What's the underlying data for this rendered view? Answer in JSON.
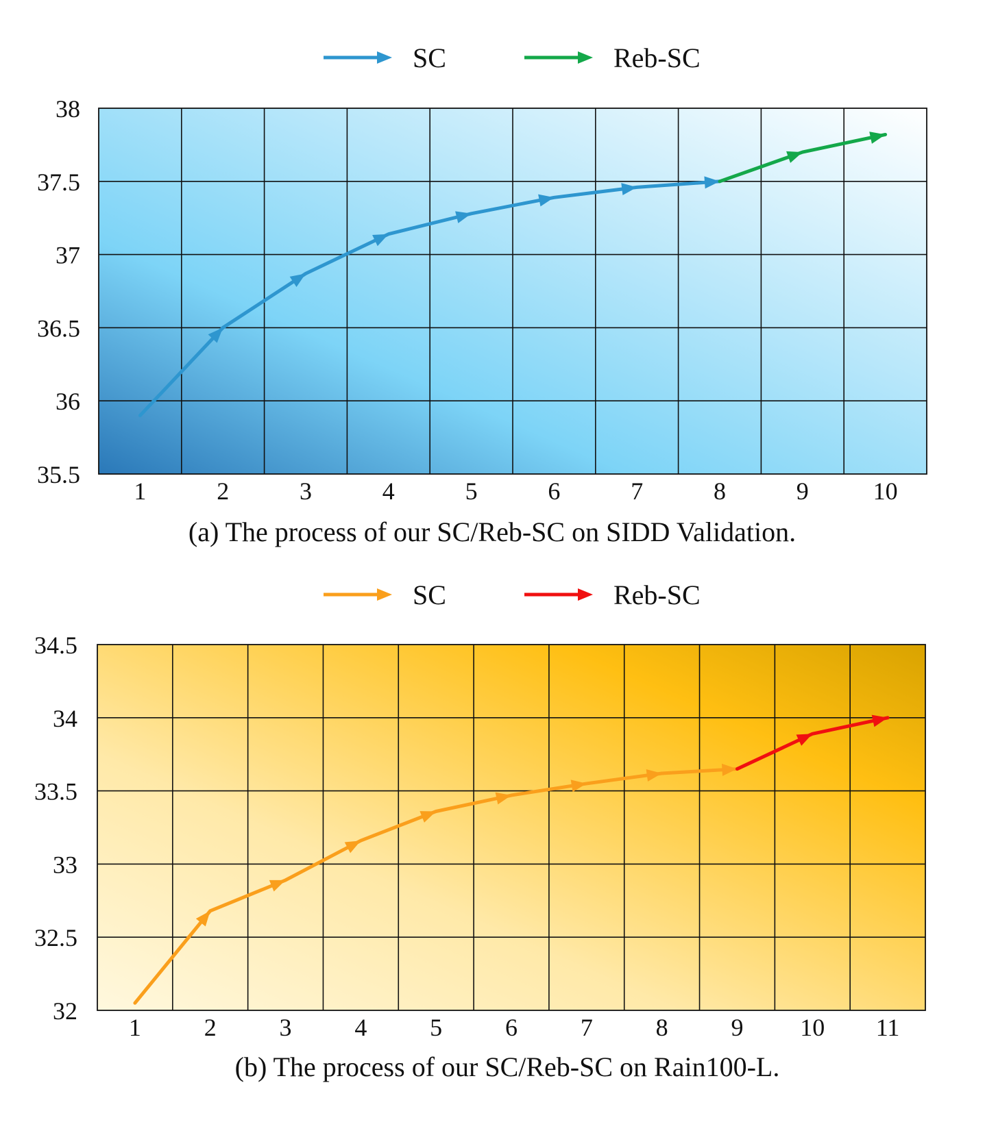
{
  "chart_data": [
    {
      "type": "line",
      "id": "a",
      "caption": "(a)  The process of our SC/Reb-SC on SIDD Validation.",
      "categories": [
        "1",
        "2",
        "3",
        "4",
        "5",
        "6",
        "7",
        "8",
        "9",
        "10"
      ],
      "x": [
        1,
        2,
        3,
        4,
        5,
        6,
        7,
        8,
        9,
        10
      ],
      "ylim": [
        35.5,
        38
      ],
      "yticks": [
        "35.5",
        "36",
        "36.5",
        "37",
        "37.5",
        "38"
      ],
      "ytick_values": [
        35.5,
        36,
        36.5,
        37,
        37.5,
        38
      ],
      "grid": true,
      "legend_position": "top-center",
      "background": "gradient: dark blue bottom-left to white top-right",
      "series": [
        {
          "name": "SC",
          "color": "#2e96cf",
          "x": [
            1,
            2,
            3,
            4,
            5,
            6,
            7,
            8
          ],
          "values": [
            35.9,
            36.5,
            36.87,
            37.14,
            37.28,
            37.39,
            37.46,
            37.5
          ]
        },
        {
          "name": "Reb-SC",
          "color": "#14a84a",
          "x": [
            8,
            9,
            10
          ],
          "values": [
            37.5,
            37.7,
            37.82
          ]
        }
      ]
    },
    {
      "type": "line",
      "id": "b",
      "caption": "(b)  The process of our SC/Reb-SC on Rain100-L.",
      "categories": [
        "1",
        "2",
        "3",
        "4",
        "5",
        "6",
        "7",
        "8",
        "9",
        "10",
        "11"
      ],
      "x": [
        1,
        2,
        3,
        4,
        5,
        6,
        7,
        8,
        9,
        10,
        11
      ],
      "ylim": [
        32,
        34.5
      ],
      "yticks": [
        "32",
        "32.5",
        "33",
        "33.5",
        "34",
        "34.5"
      ],
      "ytick_values": [
        32,
        32.5,
        33,
        33.5,
        34,
        34.5
      ],
      "grid": true,
      "legend_position": "top-center",
      "background": "gradient: pale yellow bottom-left to amber top-right",
      "series": [
        {
          "name": "SC",
          "color": "#fa9f1c",
          "x": [
            1,
            2,
            3,
            4,
            5,
            6,
            7,
            8,
            9
          ],
          "values": [
            32.05,
            32.68,
            32.89,
            33.16,
            33.36,
            33.47,
            33.55,
            33.62,
            33.65
          ]
        },
        {
          "name": "Reb-SC",
          "color": "#f01010",
          "x": [
            9,
            10,
            11
          ],
          "values": [
            33.65,
            33.89,
            34.0
          ]
        }
      ]
    }
  ]
}
